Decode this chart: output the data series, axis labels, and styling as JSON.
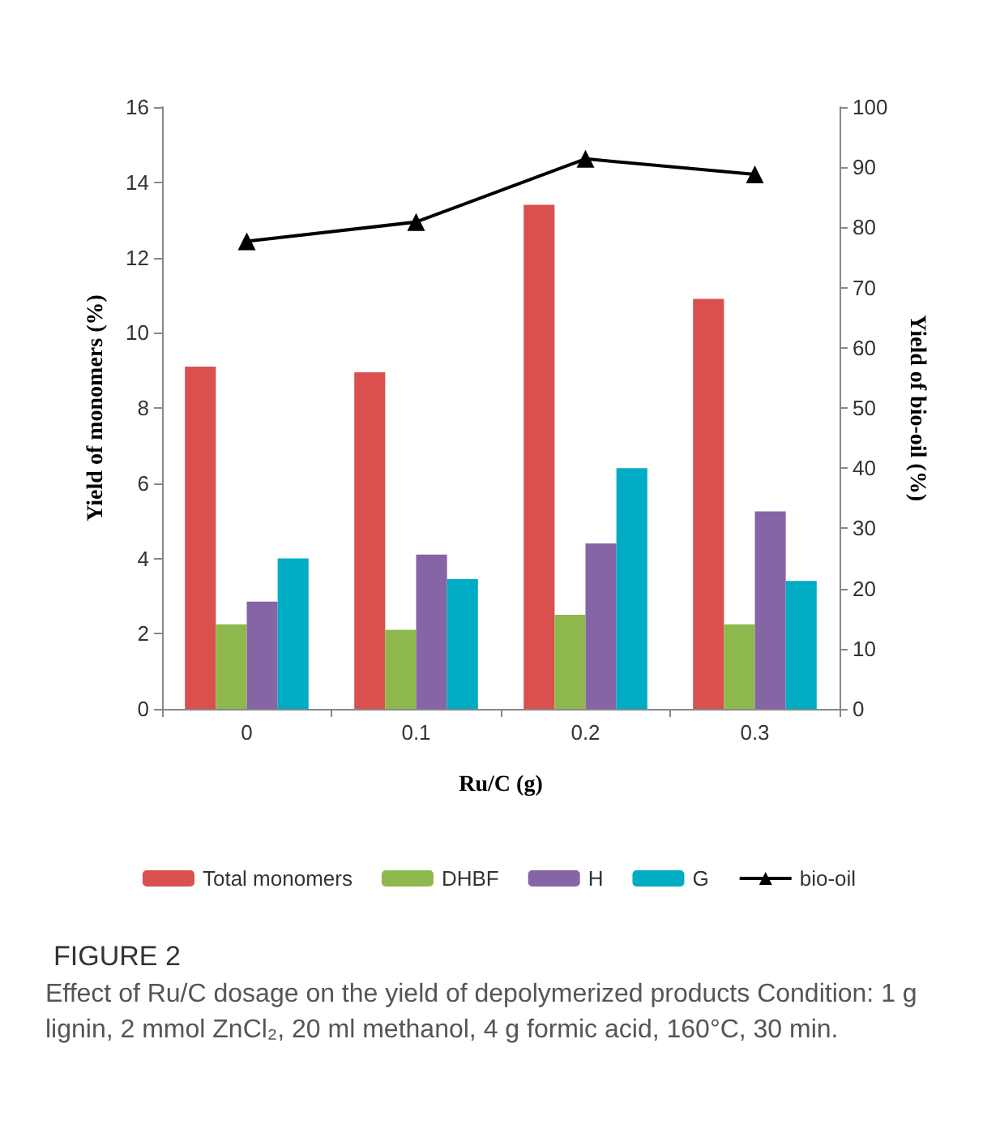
{
  "chart_data": {
    "type": "bar",
    "title": "FIGURE 2",
    "annotations": [
      "Effect of Ru/C dosage on the yield of depolymerized products Condition: 1 g lignin, 2 mmol ZnCl₂, 20 ml methanol, 4 g formic acid, 160°C, 30 min."
    ],
    "xlabel": "Ru/C (g)",
    "ylabel": "Yield of monomers (%)",
    "y2label": "Yield of bio-oil (%)",
    "categories": [
      "0",
      "0.1",
      "0.2",
      "0.3"
    ],
    "series": [
      {
        "name": "Total monomers",
        "color": "#d9504e",
        "values": [
          9.1,
          8.95,
          13.4,
          10.9
        ]
      },
      {
        "name": "DHBF",
        "color": "#8db84c",
        "values": [
          2.25,
          2.1,
          2.5,
          2.25
        ]
      },
      {
        "name": "H",
        "color": "#8665a6",
        "values": [
          2.85,
          4.1,
          4.4,
          5.25
        ]
      },
      {
        "name": "G",
        "color": "#00abc4",
        "values": [
          4.0,
          3.45,
          6.4,
          3.4
        ]
      },
      {
        "name": "bio-oil",
        "type": "line",
        "axis": "y2",
        "color": "#000000",
        "marker": "triangle",
        "values": [
          77.7,
          80.9,
          91.4,
          88.8
        ]
      }
    ],
    "ylim": [
      0,
      16
    ],
    "yticks": [
      0,
      2,
      4,
      6,
      8,
      10,
      12,
      14,
      16
    ],
    "y2lim": [
      0,
      100
    ],
    "y2ticks": [
      0,
      10,
      20,
      30,
      40,
      50,
      60,
      70,
      80,
      90,
      100
    ],
    "grid": false,
    "legend": "bottom"
  }
}
